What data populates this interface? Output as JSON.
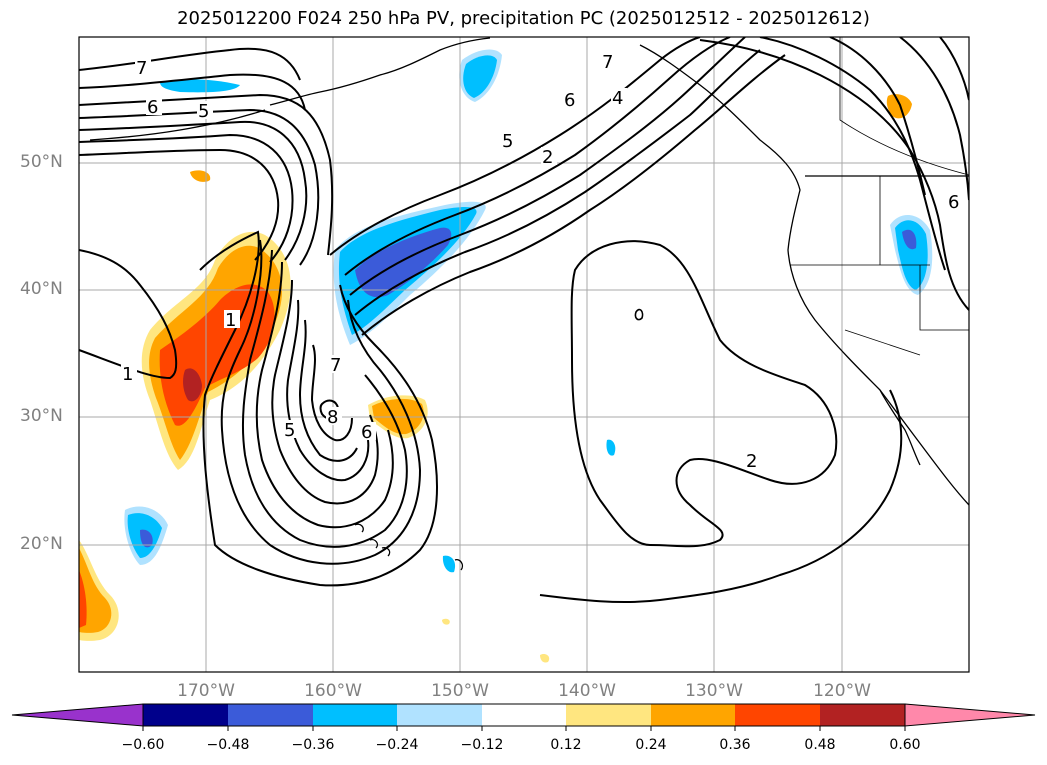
{
  "title": "2025012200 F024 250 hPa PV, precipitation PC (2025012512 - 2025012612)",
  "map": {
    "projection": "lat-lon",
    "lon_range": [
      "180°",
      "110°W"
    ],
    "lat_range": [
      "10°N",
      "60°N"
    ],
    "lat_ticks": [
      "50°N",
      "40°N",
      "30°N",
      "20°N"
    ],
    "lon_ticks": [
      "170°W",
      "160°W",
      "150°W",
      "140°W",
      "130°W",
      "120°W"
    ],
    "grid": true,
    "coastlines": true
  },
  "contour_labels": [
    "7",
    "6",
    "5",
    "7",
    "6",
    "4",
    "5",
    "2",
    "1",
    "1",
    "7",
    "8",
    "5",
    "6",
    "2",
    "6"
  ],
  "colorbar": {
    "ticks": [
      "−0.60",
      "−0.48",
      "−0.36",
      "−0.24",
      "−0.12",
      "0.12",
      "0.24",
      "0.36",
      "0.48",
      "0.60"
    ],
    "colors": [
      "#9932cc",
      "#00008b",
      "#3b5bd9",
      "#00bfff",
      "#b0e2ff",
      "#ffffff",
      "#ffe680",
      "#ffa500",
      "#ff4500",
      "#b22222",
      "#ff88aa"
    ],
    "extend": "both"
  }
}
